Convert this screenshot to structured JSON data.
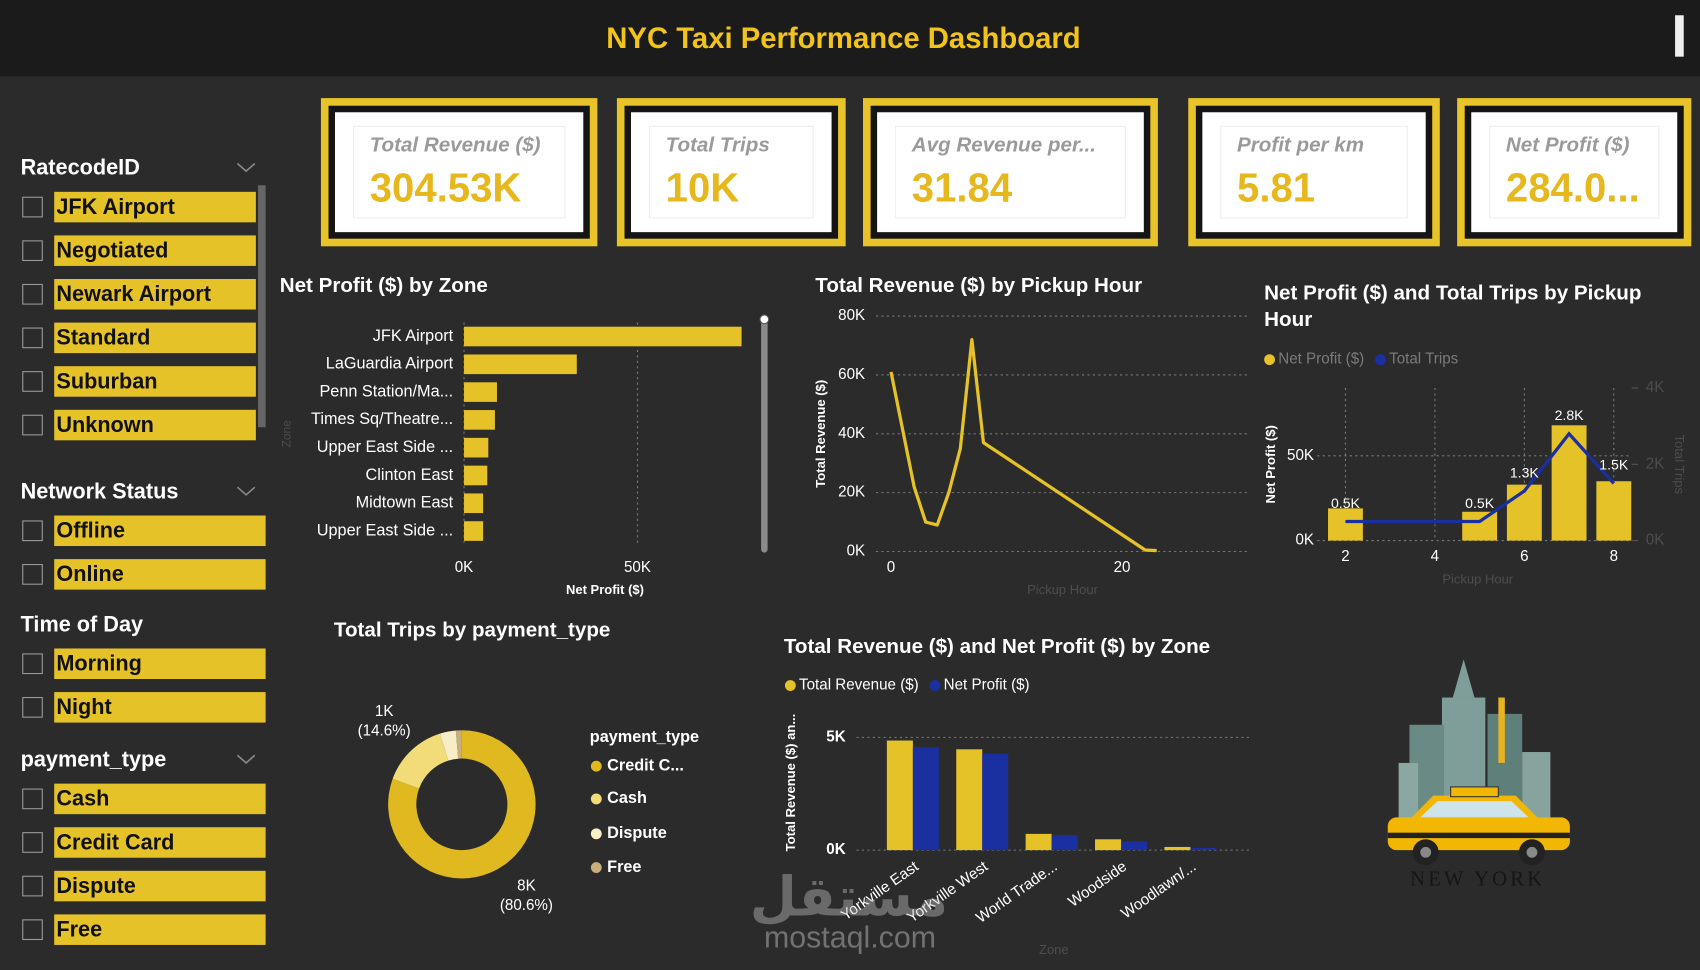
{
  "header": {
    "title": "NYC Taxi Performance Dashboard"
  },
  "slicers": [
    {
      "title": "RatecodeID",
      "items": [
        "JFK Airport",
        "Negotiated",
        "Newark Airport",
        "Standard",
        "Suburban",
        "Unknown"
      ]
    },
    {
      "title": "Network Status",
      "items": [
        "Offline",
        "Online"
      ]
    },
    {
      "title": "Time of Day",
      "items": [
        "Morning",
        "Night"
      ]
    },
    {
      "title": "payment_type",
      "items": [
        "Cash",
        "Credit Card",
        "Dispute",
        "Free"
      ]
    }
  ],
  "kpis": [
    {
      "label": "Total Revenue ($)",
      "value": "304.53K"
    },
    {
      "label": "Total Trips",
      "value": "10K"
    },
    {
      "label": "Avg Revenue per...",
      "value": "31.84"
    },
    {
      "label": "Profit per km",
      "value": "5.81"
    },
    {
      "label": "Net Profit ($)",
      "value": "284.0..."
    }
  ],
  "chart_data": [
    {
      "type": "bar",
      "orientation": "horizontal",
      "title": "Net Profit ($) by Zone",
      "x_label": "Net Profit ($)",
      "y_label": "Zone",
      "categories": [
        "JFK Airport",
        "LaGuardia Airport",
        "Penn Station/Ma...",
        "Times Sq/Theatre...",
        "Upper East Side ...",
        "Clinton East",
        "Midtown East",
        "Upper East Side ..."
      ],
      "values": [
        80000,
        32500,
        9500,
        8900,
        7000,
        6700,
        5500,
        5500
      ],
      "color": "#e6c229",
      "xlim": [
        0,
        85000
      ],
      "xticks": [
        {
          "value": 0,
          "label": "0K"
        },
        {
          "value": 50000,
          "label": "50K"
        }
      ],
      "grid": true
    },
    {
      "type": "line",
      "title": "Total Revenue ($) by Pickup Hour",
      "x_label": "Pickup Hour",
      "y_label": "Total Revenue ($)",
      "x": [
        0,
        2,
        3,
        4,
        5,
        6,
        7,
        8,
        22,
        23
      ],
      "values": [
        61000,
        22000,
        10000,
        9000,
        20000,
        35000,
        72000,
        37000,
        500,
        300
      ],
      "color": "#e6c229",
      "xlim": [
        -1.3,
        30.8
      ],
      "xticks": [
        0,
        20
      ],
      "ylim": [
        0,
        80000
      ],
      "yticks": [
        {
          "value": 0,
          "label": "0K"
        },
        {
          "value": 20000,
          "label": "20K"
        },
        {
          "value": 40000,
          "label": "40K"
        },
        {
          "value": 60000,
          "label": "60K"
        },
        {
          "value": 80000,
          "label": "80K"
        }
      ],
      "grid": true
    },
    {
      "type": "combo",
      "title": "Net Profit ($) and Total Trips by Pickup Hour",
      "x_label": "Pickup Hour",
      "y_label": "Net Profit ($)",
      "y2_label": "Total Trips",
      "x": [
        2,
        5,
        6,
        7,
        8
      ],
      "series": [
        {
          "name": "Net Profit ($)",
          "type": "bar",
          "color": "#e6c229",
          "values": [
            19000,
            17000,
            33000,
            68000,
            35000
          ]
        },
        {
          "name": "Total Trips",
          "type": "line",
          "axis": "y2",
          "color": "#1a2fa0",
          "values": [
            500,
            500,
            1300,
            2800,
            1500
          ],
          "value_labels": [
            "0.5K",
            "0.5K",
            "1.3K",
            "2.8K",
            "1.5K"
          ]
        }
      ],
      "xlim": [
        1.37,
        8.4
      ],
      "xticks": [
        2,
        4,
        6,
        8
      ],
      "ylim": [
        0,
        90000
      ],
      "yticks": [
        {
          "value": 0,
          "label": "0K"
        },
        {
          "value": 50000,
          "label": "50K"
        }
      ],
      "y2lim": [
        0,
        4000
      ],
      "y2ticks": [
        {
          "value": 0,
          "label": "0K"
        },
        {
          "value": 2000,
          "label": "2K"
        },
        {
          "value": 4000,
          "label": "4K"
        }
      ],
      "grid": true,
      "xgrid": true,
      "legend": "top-left"
    },
    {
      "type": "donut",
      "title": "Total Trips by payment_type",
      "legend_title": "payment_type",
      "categories": [
        "Credit C...",
        "Cash",
        "Dispute",
        "Free"
      ],
      "values": [
        8060,
        1460,
        350,
        130
      ],
      "value_labels": [
        "8K (80.6%)",
        "1K (14.6%)",
        null,
        null
      ],
      "colors": [
        "#e0b81f",
        "#f2dc7a",
        "#f7eec8",
        "#c9b07a"
      ]
    },
    {
      "type": "grouped-bar",
      "title": "Total Revenue ($) and Net Profit ($) by Zone",
      "x_label": "Zone",
      "y_label": "Total Revenue ($) an...",
      "categories": [
        "Yorkville East",
        "Yorkville West",
        "World Trade...",
        "Woodside",
        "Woodlawn/..."
      ],
      "series": [
        {
          "name": "Total Revenue ($)",
          "color": "#e6c229",
          "values": [
            4860,
            4470,
            720,
            480,
            140
          ]
        },
        {
          "name": "Net Profit ($)",
          "color": "#1a2fa0",
          "values": [
            4570,
            4280,
            670,
            385,
            100
          ]
        }
      ],
      "ylim": [
        0,
        5800
      ],
      "yticks": [
        {
          "value": 0,
          "label": "0K"
        },
        {
          "value": 5000,
          "label": "5K"
        }
      ],
      "grid": true,
      "legend": "top-left"
    }
  ],
  "logo": {
    "text": "NEW YORK"
  },
  "watermark": {
    "arabic": "مستقل",
    "latin": "mostaql.com"
  }
}
